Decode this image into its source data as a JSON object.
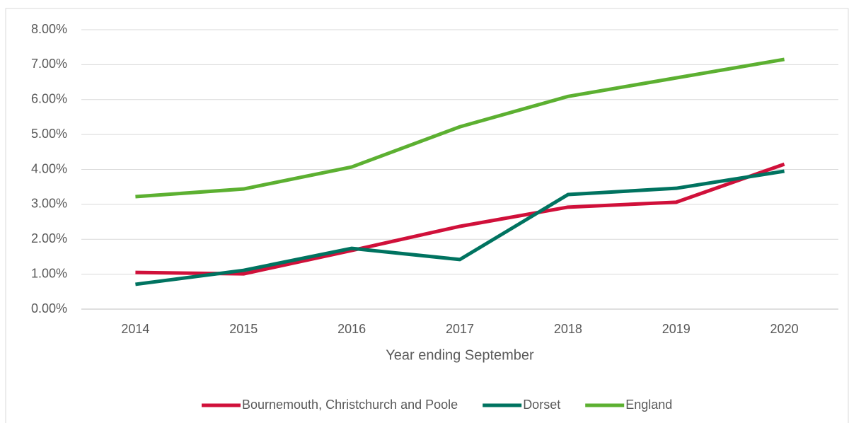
{
  "chart_data": {
    "type": "line",
    "x_label": "Year ending September",
    "categories": [
      "2014",
      "2015",
      "2016",
      "2017",
      "2018",
      "2019",
      "2020"
    ],
    "series": [
      {
        "name": "Bournemouth, Christchurch and Poole",
        "color": "#d0103a",
        "values": [
          1.05,
          1.01,
          1.68,
          2.37,
          2.92,
          3.06,
          4.15
        ]
      },
      {
        "name": "Dorset",
        "color": "#007360",
        "values": [
          0.71,
          1.11,
          1.74,
          1.42,
          3.28,
          3.46,
          3.95
        ]
      },
      {
        "name": "England",
        "color": "#5cb031",
        "values": [
          3.22,
          3.44,
          4.07,
          5.22,
          6.09,
          6.62,
          7.15
        ]
      }
    ],
    "ylim": [
      0,
      8
    ],
    "yticks": [
      {
        "value": 0,
        "label": "0.00%"
      },
      {
        "value": 1,
        "label": "1.00%"
      },
      {
        "value": 2,
        "label": "2.00%"
      },
      {
        "value": 3,
        "label": "3.00%"
      },
      {
        "value": 4,
        "label": "4.00%"
      },
      {
        "value": 5,
        "label": "5.00%"
      },
      {
        "value": 6,
        "label": "6.00%"
      },
      {
        "value": 7,
        "label": "7.00%"
      },
      {
        "value": 8,
        "label": "8.00%"
      }
    ],
    "grid": true,
    "legend": "bottom"
  }
}
